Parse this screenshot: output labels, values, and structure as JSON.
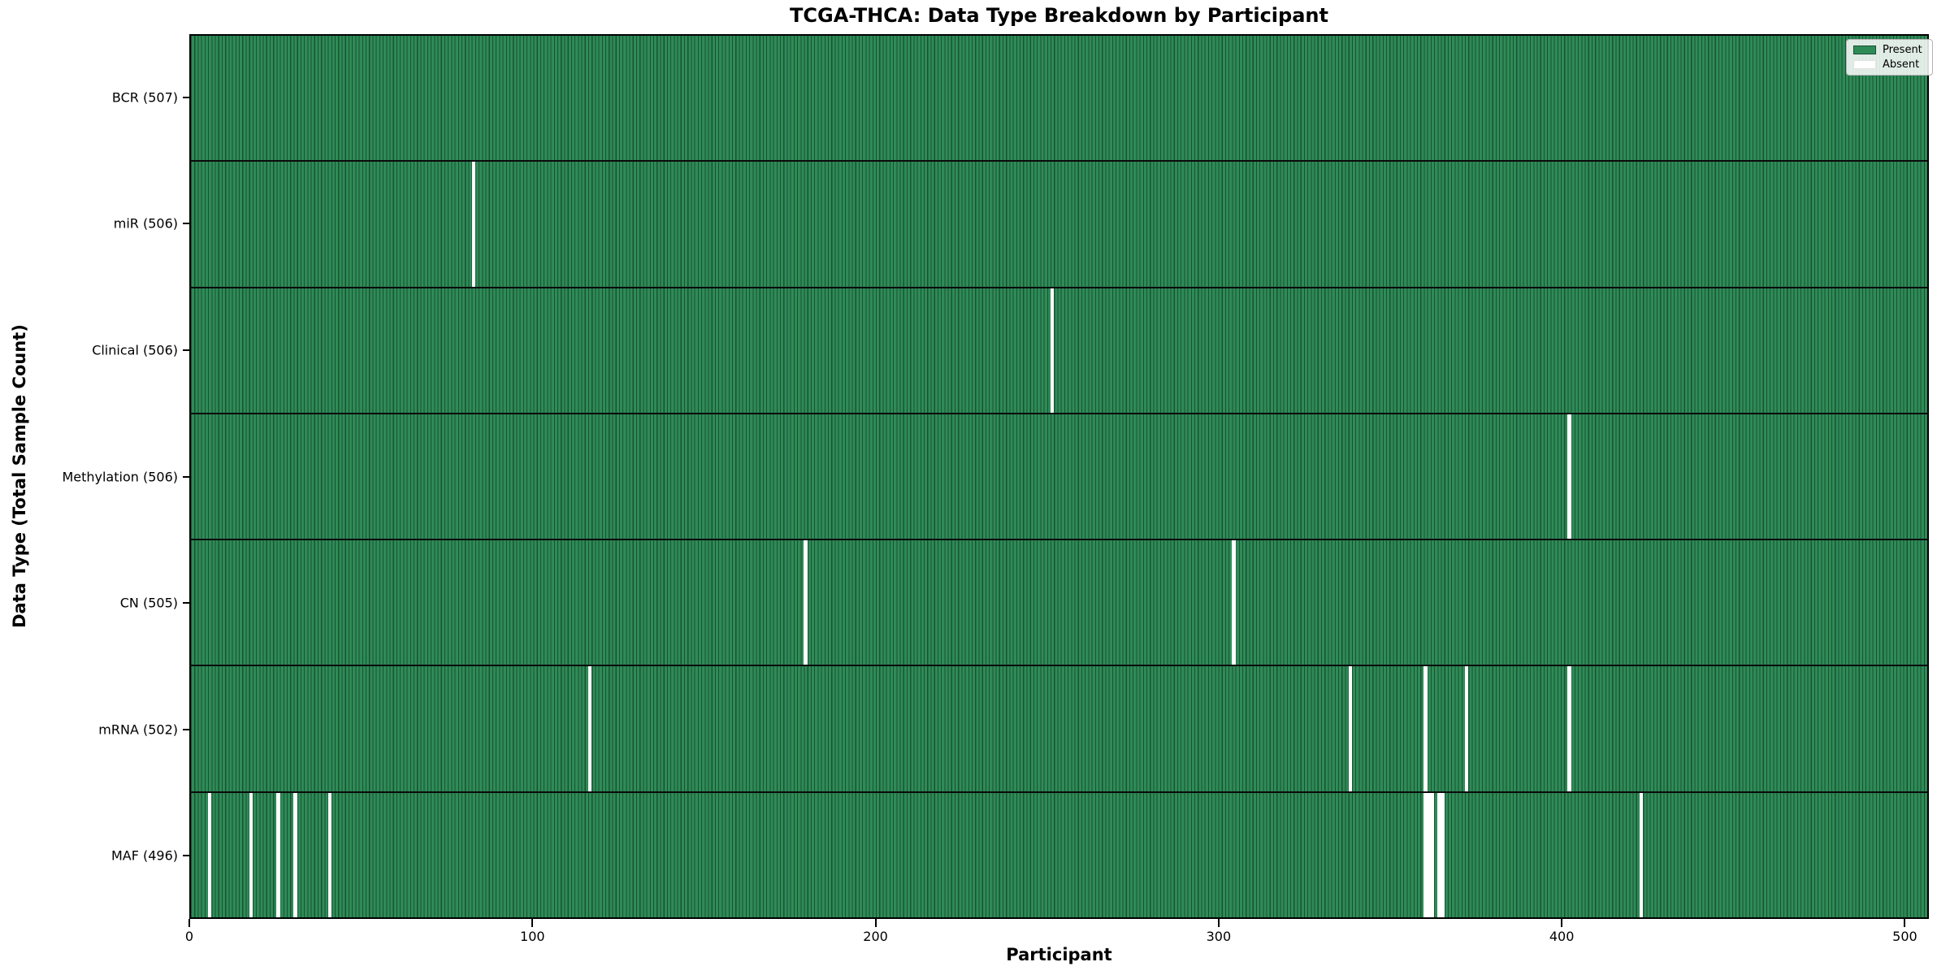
{
  "figure": {
    "title": "TCGA-THCA: Data Type Breakdown by Participant",
    "xlabel": "Participant",
    "ylabel": "Data Type (Total Sample Count)"
  },
  "legend": {
    "present_label": "Present",
    "absent_label": "Absent"
  },
  "colors": {
    "present": "#2e8b57",
    "present_edge": "#1a5233",
    "absent": "#ffffff",
    "separator": "#0b0b0b",
    "spine": "#000000",
    "legend_bg": "rgba(255,255,255,0.85)",
    "legend_border": "#b3b3b3"
  },
  "chart_data": {
    "type": "heatmap",
    "title": "TCGA-THCA: Data Type Breakdown by Participant",
    "xlabel": "Participant",
    "ylabel": "Data Type (Total Sample Count)",
    "x_ticks": [
      0,
      100,
      200,
      300,
      400,
      500
    ],
    "xlim": [
      0,
      507
    ],
    "total_participants": 507,
    "legend_entries": [
      "Present",
      "Absent"
    ],
    "legend_position": "upper right",
    "grid": false,
    "cell_present_color": "#2e8b57",
    "cell_absent_color": "#ffffff",
    "rows": [
      {
        "name": "bcr",
        "data_type": "BCR",
        "label": "BCR (507)",
        "total_samples": 507,
        "absent_participants": []
      },
      {
        "name": "mir",
        "data_type": "miR",
        "label": "miR (506)",
        "total_samples": 506,
        "absent_participants": [
          82
        ]
      },
      {
        "name": "clinical",
        "data_type": "Clinical",
        "label": "Clinical (506)",
        "total_samples": 506,
        "absent_participants": [
          251
        ]
      },
      {
        "name": "methylation",
        "data_type": "Methylation",
        "label": "Methylation (506)",
        "total_samples": 506,
        "absent_participants": [
          402
        ]
      },
      {
        "name": "cn",
        "data_type": "CN",
        "label": "CN (505)",
        "total_samples": 505,
        "absent_participants": [
          179,
          304
        ]
      },
      {
        "name": "mrna",
        "data_type": "mRNA",
        "label": "mRNA (502)",
        "total_samples": 502,
        "absent_participants": [
          116,
          338,
          360,
          372,
          402
        ]
      },
      {
        "name": "maf",
        "data_type": "MAF",
        "label": "MAF (496)",
        "total_samples": 496,
        "absent_participants": [
          5,
          17,
          25,
          30,
          40,
          360,
          361,
          362,
          364,
          365,
          423
        ]
      }
    ]
  }
}
